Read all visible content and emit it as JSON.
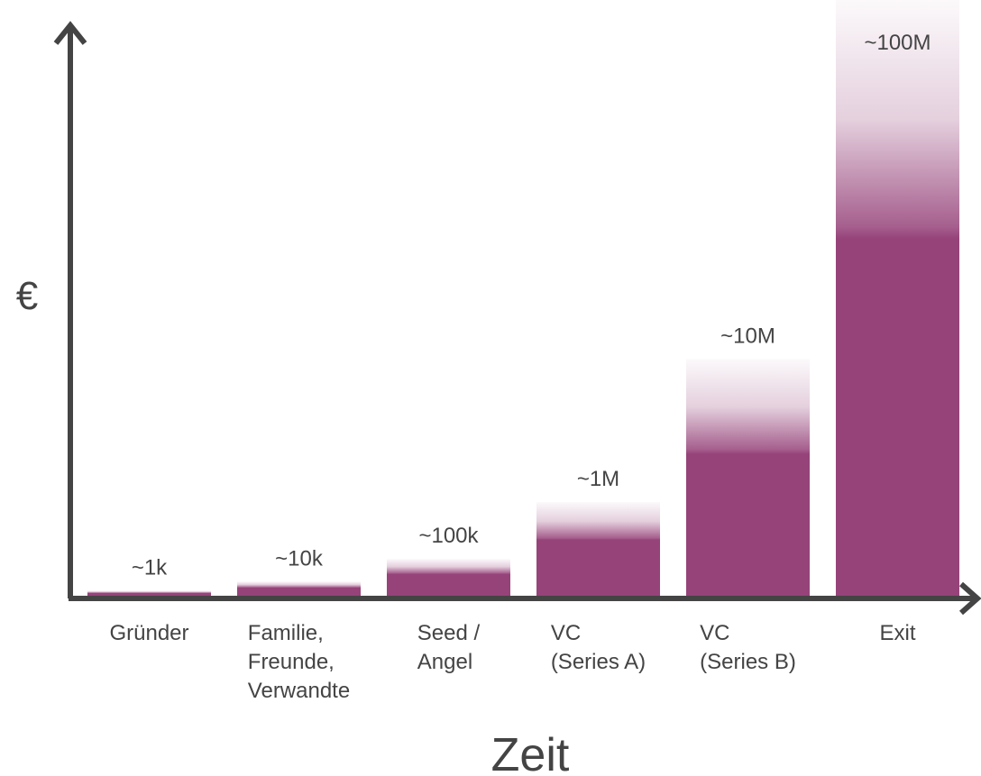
{
  "chart_data": {
    "type": "bar",
    "categories": [
      "Gründer",
      "Familie,\nFreunde,\nVerwandte",
      "Seed /\nAngel",
      "VC\n(Series A)",
      "VC\n(Series B)",
      "Exit"
    ],
    "values": [
      1000,
      10000,
      100000,
      1000000,
      10000000,
      100000000
    ],
    "value_labels": [
      "~1k",
      "~10k",
      "~100k",
      "~1M",
      "~10M",
      "~100M"
    ],
    "color": "#96437a",
    "y_label": "€",
    "x_label": "Zeit"
  }
}
